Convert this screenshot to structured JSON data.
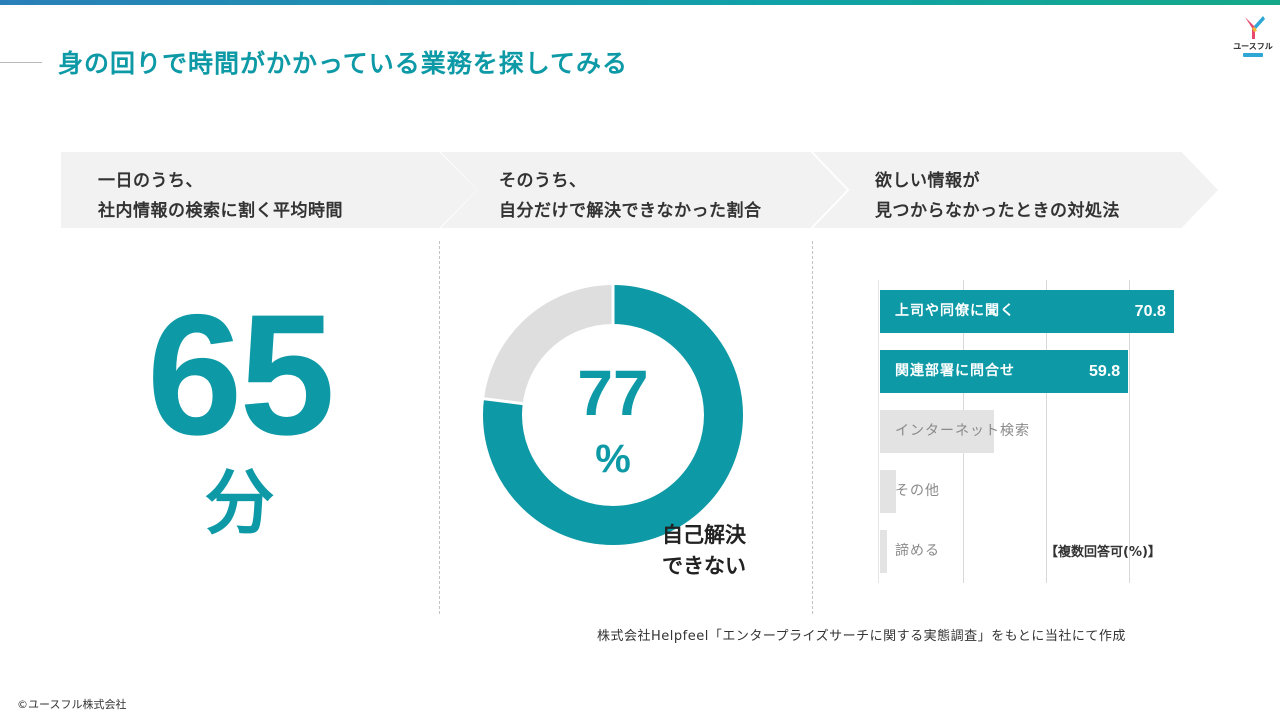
{
  "title": "身の回りで時間がかかっている業務を探してみる",
  "logo": {
    "text": "ユースフル",
    "icon": "y-logo-icon",
    "colors": [
      "#e8486b",
      "#f2b43a",
      "#2ea7d6"
    ]
  },
  "steps": [
    {
      "line1": "一日のうち、",
      "line2": "社内情報の検索に割く平均時間"
    },
    {
      "line1": "そのうち、",
      "line2": "自分だけで解決できなかった割合"
    },
    {
      "line1": "欲しい情報が",
      "line2": "見つからなかったときの対処法"
    }
  ],
  "stat1": {
    "value": "65",
    "unit": "分"
  },
  "stat2": {
    "value": "77",
    "unit": "%",
    "label_line1": "自己解決",
    "label_line2": "できない",
    "fraction": 0.77
  },
  "colors": {
    "accent": "#0d9aa6",
    "muted": "#dedede",
    "chevron": "#f2f2f2"
  },
  "chart_data": {
    "type": "bar",
    "orientation": "horizontal",
    "categories": [
      "上司や同僚に聞く",
      "関連部署に問合せ",
      "インターネット検索",
      "その他",
      "諦める"
    ],
    "values": [
      70.8,
      59.8,
      27.5,
      3.8,
      1.8
    ],
    "value_labels": [
      "70.8",
      "59.8",
      "",
      "",
      ""
    ],
    "xlim": [
      0,
      80
    ],
    "grid": true,
    "note": "【複数回答可(%)】"
  },
  "source": "株式会社Helpfeel「エンタープライズサーチに関する実態調査」をもとに当社にて作成",
  "copyright": "©ユースフル株式会社"
}
